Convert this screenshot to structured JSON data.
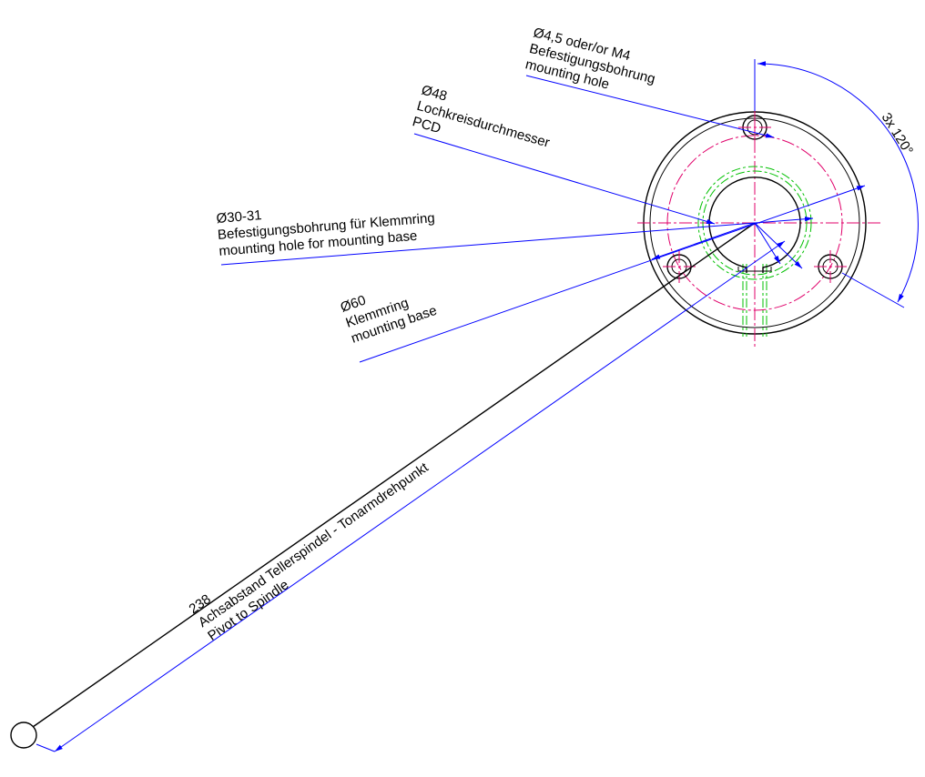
{
  "labels": {
    "hole": {
      "dia": "Ø4,5 oder/or M4",
      "de": "Befestigungsbohrung",
      "en": "mounting hole"
    },
    "pcd": {
      "dia": "Ø48",
      "de": "Lochkreisdurchmesser",
      "en": "PCD"
    },
    "base_hole": {
      "dia": "Ø30-31",
      "de": "Befestigungsbohrung für Klemmring",
      "en": "mounting hole for mounting base"
    },
    "base": {
      "dia": "Ø60",
      "de": "Klemmring",
      "en": "mounting base"
    },
    "angle": "3x 120°",
    "distance": {
      "value": "238",
      "de": "Achsabstand Tellerspindel - Tonarmdrehpunkt",
      "en": "Pivot to Spindle"
    }
  },
  "colors": {
    "outline": "#000000",
    "dimension": "#0000ff",
    "centerline": "#e0006a",
    "hidden": "#00c000"
  }
}
